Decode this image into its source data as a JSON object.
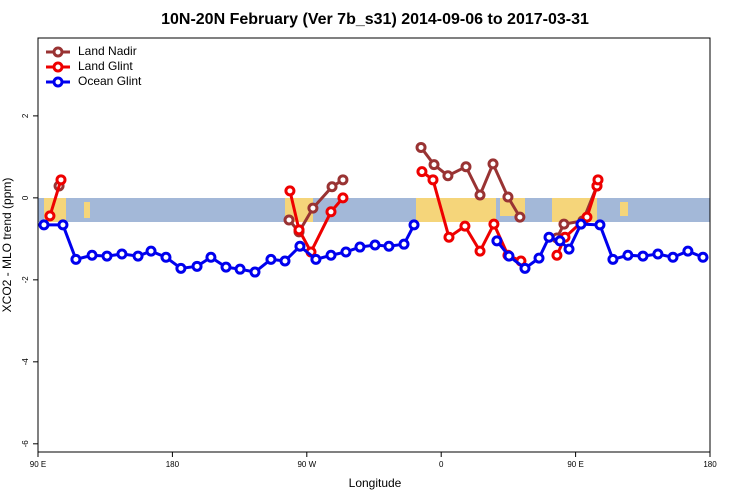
{
  "chart_data": {
    "type": "line",
    "title": "10N-20N February (Ver 7b_s31)   2014-09-06 to 2017-03-31",
    "x_label": "Longitude",
    "y_label": "XCO2 - MLO trend (ppm)",
    "xlim": [
      90,
      540
    ],
    "ylim": [
      -6.2,
      3.9
    ],
    "xticks": [
      {
        "value": 90,
        "label": "90 E"
      },
      {
        "value": 180,
        "label": "180"
      },
      {
        "value": 270,
        "label": "90 W"
      },
      {
        "value": 360,
        "label": "0"
      },
      {
        "value": 450,
        "label": "90 E"
      },
      {
        "value": 540,
        "label": "180"
      }
    ],
    "yticks": [
      -6,
      -4,
      -2,
      0,
      2
    ],
    "legend": "top-left",
    "series": [
      {
        "name": "Land Nadir",
        "color": "#993333",
        "x": [
          104.1,
          null,
          258.1,
          264.8,
          274.1,
          286.9,
          294.2,
          null,
          346.5,
          355.2,
          364.5,
          376.6,
          386,
          394.7,
          404.7,
          412.7,
          null,
          437.5,
          442.2,
          454.9,
          464.3
        ],
        "values": [
          0.29,
          null,
          -0.54,
          -0.83,
          -0.25,
          0.27,
          0.44,
          null,
          1.23,
          0.81,
          0.54,
          0.76,
          0.07,
          0.83,
          0.02,
          -0.47,
          null,
          -0.98,
          -0.64,
          -0.56,
          0.29
        ]
      },
      {
        "name": "Land Glint",
        "color": "#ee0000",
        "x": [
          98,
          105.4,
          null,
          258.7,
          264.8,
          272.8,
          286.2,
          294.2,
          null,
          347.1,
          354.5,
          365.2,
          375.9,
          386,
          395.3,
          404.7,
          413.4,
          null,
          437.5,
          442.9,
          457.6,
          464.3,
          465
        ],
        "values": [
          -0.44,
          0.44,
          null,
          0.17,
          -0.78,
          -1.32,
          -0.34,
          0,
          null,
          0.64,
          0.44,
          -0.96,
          -0.69,
          -1.3,
          -0.64,
          -1.4,
          -1.54,
          null,
          -1.4,
          -0.96,
          -0.47,
          0.29,
          0.44
        ]
      },
      {
        "name": "Ocean Glint",
        "color": "#0000ee",
        "x": [
          94,
          106.7,
          115.4,
          126.2,
          136.2,
          146.2,
          157,
          165.7,
          175.7,
          185.7,
          196.5,
          205.8,
          215.9,
          225.3,
          235.3,
          246,
          255.4,
          265.4,
          276.1,
          286.2,
          296.2,
          305.6,
          315.7,
          325,
          335.1,
          341.8,
          null,
          397.3,
          405.4,
          416.1,
          425.5,
          432.2,
          439.5,
          445.6,
          453.6,
          466.3,
          475,
          485,
          495.1,
          505.1,
          515.2,
          525.2,
          535.3
        ],
        "values": [
          -0.66,
          -0.66,
          -1.5,
          -1.4,
          -1.42,
          -1.37,
          -1.42,
          -1.3,
          -1.45,
          -1.72,
          -1.67,
          -1.45,
          -1.69,
          -1.74,
          -1.81,
          -1.5,
          -1.54,
          -1.18,
          -1.5,
          -1.4,
          -1.32,
          -1.2,
          -1.15,
          -1.18,
          -1.13,
          -0.66,
          null,
          -1.05,
          -1.42,
          -1.72,
          -1.47,
          -0.96,
          -1.05,
          -1.25,
          -0.64,
          -0.66,
          -1.5,
          -1.4,
          -1.42,
          -1.37,
          -1.45,
          -1.3,
          -1.45
        ]
      }
    ]
  }
}
